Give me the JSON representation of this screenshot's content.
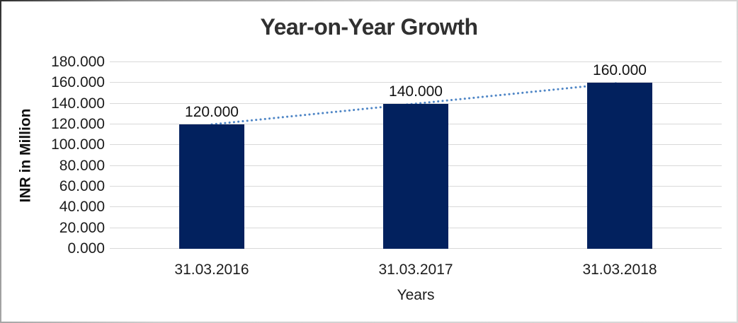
{
  "chart_data": {
    "type": "bar",
    "title": "Year-on-Year Growth",
    "categories": [
      "31.03.2016",
      "31.03.2017",
      "31.03.2018"
    ],
    "values": [
      120,
      140,
      160
    ],
    "value_labels": [
      "120.000",
      "140.000",
      "160.000"
    ],
    "xlabel": "Years",
    "ylabel": "INR in Million",
    "ylim": [
      0,
      180
    ],
    "ytick_step": 20,
    "ytick_labels": [
      "0.000",
      "20.000",
      "40.000",
      "60.000",
      "80.000",
      "100.000",
      "120.000",
      "140.000",
      "160.000",
      "180.000"
    ],
    "grid": "horizontal",
    "legend": "none",
    "colors": {
      "bar": "#02215e",
      "gridline": "#d9d9d9",
      "trendline": "#4f86c6",
      "title_text": "#303030",
      "background": "#ffffff"
    },
    "trendline": {
      "style": "dotted",
      "from_category_index": 0,
      "from_value": 120,
      "to_category_index": 2,
      "to_value": 160
    }
  }
}
